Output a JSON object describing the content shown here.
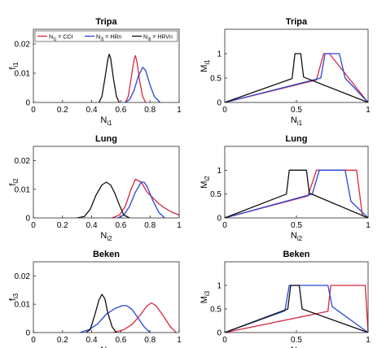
{
  "figure": {
    "legend": {
      "entries": [
        {
          "main": "N",
          "sub": "1j",
          "suffix": " = CCI",
          "color": "#d7263d"
        },
        {
          "main": "N",
          "sub": "2j",
          "suffix": " = HRn",
          "color": "#2846d8"
        },
        {
          "main": "N",
          "sub": "3j",
          "suffix": " = HRVn",
          "color": "#111111"
        }
      ]
    }
  },
  "chart_data": [
    {
      "type": "line",
      "title": "Tripa",
      "xlabel": {
        "main": "N",
        "sub": "i1"
      },
      "ylabel": {
        "main": "f",
        "sub": "i1"
      },
      "xlim": [
        0,
        1
      ],
      "ylim": [
        0,
        0.025
      ],
      "xticks": [
        0,
        0.2,
        0.4,
        0.6,
        0.8,
        1
      ],
      "xtick_labels": [
        "0",
        "0.2",
        "0.4",
        "0.6",
        "0.8",
        "1"
      ],
      "yticks": [
        0,
        0.01,
        0.02
      ],
      "ytick_labels": [
        "0",
        "0.01",
        "0.02"
      ],
      "grid": false,
      "series": [
        {
          "name": "N1j = CCI",
          "color": "#d7263d",
          "x": [
            0.63,
            0.65,
            0.67,
            0.69,
            0.7,
            0.71,
            0.73,
            0.75,
            0.77
          ],
          "y": [
            0,
            0.002,
            0.008,
            0.0145,
            0.016,
            0.014,
            0.007,
            0.002,
            0
          ]
        },
        {
          "name": "N2j = HRn",
          "color": "#2846d8",
          "x": [
            0.63,
            0.66,
            0.69,
            0.72,
            0.75,
            0.77,
            0.8,
            0.83,
            0.87
          ],
          "y": [
            0,
            0.001,
            0.004,
            0.009,
            0.012,
            0.011,
            0.006,
            0.002,
            0
          ]
        },
        {
          "name": "N3j = HRVn",
          "color": "#111111",
          "x": [
            0.45,
            0.47,
            0.49,
            0.51,
            0.52,
            0.53,
            0.55,
            0.57,
            0.59
          ],
          "y": [
            0,
            0.002,
            0.008,
            0.0145,
            0.0165,
            0.015,
            0.008,
            0.002,
            0
          ]
        }
      ]
    },
    {
      "type": "line",
      "title": "Tripa",
      "xlabel": {
        "main": "N",
        "sub": "i1"
      },
      "ylabel": {
        "main": "M",
        "sub": "i1"
      },
      "xlim": [
        0,
        1
      ],
      "ylim": [
        0,
        1.5
      ],
      "xticks": [
        0,
        0.5,
        1
      ],
      "xtick_labels": [
        "0",
        "0.5",
        "1"
      ],
      "yticks": [
        0,
        0.5,
        1
      ],
      "ytick_labels": [
        "0",
        "0.5",
        "1"
      ],
      "grid": false,
      "series": [
        {
          "name": "N1j = CCI",
          "color": "#d7263d",
          "x": [
            0,
            0.64,
            0.69,
            0.73,
            1
          ],
          "y": [
            0,
            0.46,
            1,
            1,
            0
          ]
        },
        {
          "name": "N2j = HRn",
          "color": "#2846d8",
          "x": [
            0,
            0.67,
            0.7,
            0.8,
            0.84,
            1
          ],
          "y": [
            0,
            0.5,
            1,
            1,
            0.5,
            0
          ]
        },
        {
          "name": "N3j = HRVn",
          "color": "#111111",
          "x": [
            0,
            0.47,
            0.49,
            0.53,
            0.55,
            1
          ],
          "y": [
            0,
            0.49,
            1,
            1,
            0.52,
            0
          ]
        }
      ]
    },
    {
      "type": "line",
      "title": "Lung",
      "xlabel": {
        "main": "N",
        "sub": "i2"
      },
      "ylabel": {
        "main": "f",
        "sub": "i2"
      },
      "xlim": [
        0,
        1
      ],
      "ylim": [
        0,
        0.025
      ],
      "xticks": [
        0,
        0.2,
        0.4,
        0.6,
        0.8,
        1
      ],
      "xtick_labels": [
        "0",
        "0.2",
        "0.4",
        "0.6",
        "0.8",
        "1"
      ],
      "yticks": [
        0,
        0.01,
        0.02
      ],
      "ytick_labels": [
        "0",
        "0.01",
        "0.02"
      ],
      "grid": false,
      "series": [
        {
          "name": "N1j = CCI",
          "color": "#d7263d",
          "x": [
            0.54,
            0.59,
            0.63,
            0.67,
            0.7,
            0.74,
            0.78,
            0.82,
            0.86,
            0.9,
            0.95,
            1.0
          ],
          "y": [
            0,
            0.001,
            0.004,
            0.01,
            0.0135,
            0.0125,
            0.009,
            0.007,
            0.005,
            0.0035,
            0.002,
            0.001
          ]
        },
        {
          "name": "N2j = HRn",
          "color": "#2846d8",
          "x": [
            0.58,
            0.62,
            0.66,
            0.7,
            0.74,
            0.76,
            0.78,
            0.82,
            0.86,
            0.9
          ],
          "y": [
            0,
            0.001,
            0.004,
            0.009,
            0.0125,
            0.0125,
            0.011,
            0.006,
            0.002,
            0
          ]
        },
        {
          "name": "N3j = HRVn",
          "color": "#111111",
          "x": [
            0.3,
            0.35,
            0.39,
            0.43,
            0.47,
            0.5,
            0.53,
            0.56,
            0.59,
            0.62,
            0.66
          ],
          "y": [
            0,
            0.0005,
            0.003,
            0.008,
            0.0115,
            0.0125,
            0.0115,
            0.0085,
            0.0045,
            0.001,
            0
          ]
        }
      ]
    },
    {
      "type": "line",
      "title": "Lung",
      "xlabel": {
        "main": "N",
        "sub": "i2"
      },
      "ylabel": {
        "main": "M",
        "sub": "i2"
      },
      "xlim": [
        0,
        1
      ],
      "ylim": [
        0,
        1.5
      ],
      "xticks": [
        0,
        0.5,
        1
      ],
      "xtick_labels": [
        "0",
        "0.5",
        "1"
      ],
      "yticks": [
        0,
        0.5,
        1
      ],
      "ytick_labels": [
        "0",
        "0.5",
        "1"
      ],
      "grid": false,
      "series": [
        {
          "name": "N1j = CCI",
          "color": "#d7263d",
          "x": [
            0,
            0.58,
            0.64,
            0.92,
            0.96,
            1
          ],
          "y": [
            0,
            0.46,
            1,
            1,
            0.05,
            0
          ]
        },
        {
          "name": "N2j = HRn",
          "color": "#2846d8",
          "x": [
            0,
            0.61,
            0.66,
            0.84,
            0.88,
            1
          ],
          "y": [
            0,
            0.5,
            1,
            1,
            0.35,
            0
          ]
        },
        {
          "name": "N3j = HRVn",
          "color": "#111111",
          "x": [
            0,
            0.43,
            0.45,
            0.57,
            0.59,
            1
          ],
          "y": [
            0,
            0.5,
            1,
            1,
            0.52,
            0
          ]
        }
      ]
    },
    {
      "type": "line",
      "title": "Beken",
      "xlabel": {
        "main": "N",
        "sub": "i3"
      },
      "ylabel": {
        "main": "f",
        "sub": "i3"
      },
      "xlim": [
        0,
        1
      ],
      "ylim": [
        0,
        0.025
      ],
      "xticks": [
        0,
        0.2,
        0.4,
        0.6,
        0.8,
        1
      ],
      "xtick_labels": [
        "0",
        "0.2",
        "0.4",
        "0.6",
        "0.8",
        "1"
      ],
      "yticks": [
        0,
        0.01,
        0.02
      ],
      "ytick_labels": [
        "0",
        "0.01",
        "0.02"
      ],
      "grid": false,
      "series": [
        {
          "name": "N1j = CCI",
          "color": "#d7263d",
          "x": [
            0.55,
            0.62,
            0.68,
            0.73,
            0.78,
            0.81,
            0.84,
            0.89,
            0.94,
            0.98
          ],
          "y": [
            0,
            0.001,
            0.003,
            0.006,
            0.0095,
            0.0105,
            0.0095,
            0.006,
            0.002,
            0
          ]
        },
        {
          "name": "N2j = HRn",
          "color": "#2846d8",
          "x": [
            0.32,
            0.38,
            0.44,
            0.5,
            0.56,
            0.61,
            0.64,
            0.68,
            0.72,
            0.76,
            0.8
          ],
          "y": [
            0,
            0.001,
            0.003,
            0.0065,
            0.0085,
            0.0095,
            0.0095,
            0.008,
            0.005,
            0.002,
            0
          ]
        },
        {
          "name": "N3j = HRVn",
          "color": "#111111",
          "x": [
            0.36,
            0.39,
            0.42,
            0.45,
            0.47,
            0.49,
            0.51,
            0.54,
            0.57
          ],
          "y": [
            0,
            0.001,
            0.006,
            0.0115,
            0.0135,
            0.012,
            0.007,
            0.002,
            0
          ]
        }
      ]
    },
    {
      "type": "line",
      "title": "Beken",
      "xlabel": {
        "main": "N",
        "sub": "i3"
      },
      "ylabel": {
        "main": "M",
        "sub": "i3"
      },
      "xlim": [
        0,
        1
      ],
      "ylim": [
        0,
        1.5
      ],
      "xticks": [
        0,
        0.5,
        1
      ],
      "xtick_labels": [
        "0",
        "0.5",
        "1"
      ],
      "yticks": [
        0,
        0.5,
        1
      ],
      "ytick_labels": [
        "0",
        "0.5",
        "1"
      ],
      "grid": false,
      "series": [
        {
          "name": "N1j = CCI",
          "color": "#d7263d",
          "x": [
            0,
            0.72,
            0.74,
            0.98,
            1
          ],
          "y": [
            0,
            0.45,
            1,
            1,
            0
          ]
        },
        {
          "name": "N2j = HRn",
          "color": "#2846d8",
          "x": [
            0,
            0.42,
            0.45,
            0.72,
            0.75,
            1
          ],
          "y": [
            0,
            0.46,
            1,
            1,
            0.55,
            0
          ]
        },
        {
          "name": "N3j = HRVn",
          "color": "#111111",
          "x": [
            0,
            0.44,
            0.46,
            0.52,
            0.54,
            1
          ],
          "y": [
            0,
            0.5,
            1,
            1,
            0.5,
            0
          ]
        }
      ]
    }
  ]
}
